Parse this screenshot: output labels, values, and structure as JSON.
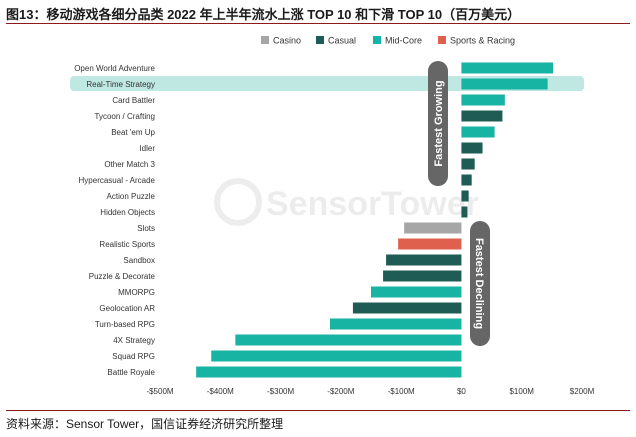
{
  "title": "图13：移动游戏各细分品类 2022 年上半年流水上涨 TOP 10 和下滑 TOP 10（百万美元）",
  "source": "资料来源：Sensor Tower，国信证券经济研究所整理",
  "watermark": "SensorTower",
  "annotations": {
    "growing": "Fastest Growing",
    "declining": "Fastest Declining"
  },
  "colors": {
    "Casino": "#a6a6a6",
    "Casual": "#1e5c55",
    "Mid-Core": "#17b3a3",
    "Sports & Racing": "#e0604e",
    "highlight": "#bfe8e2",
    "annotation": "#666666"
  },
  "chart_data": {
    "type": "bar",
    "orientation": "horizontal",
    "legend": [
      "Casino",
      "Casual",
      "Mid-Core",
      "Sports & Racing"
    ],
    "legend_position": "top",
    "categories": [
      "Open World Adventure",
      "Real-Time Strategy",
      "Card Battler",
      "Tycoon / Crafting",
      "Beat 'em Up",
      "Idler",
      "Other Match 3",
      "Hypercasual - Arcade",
      "Action Puzzle",
      "Hidden Objects",
      "Slots",
      "Realistic Sports",
      "Sandbox",
      "Puzzle & Decorate",
      "MMORPG",
      "Geolocation AR",
      "Turn-based RPG",
      "4X Strategy",
      "Squad RPG",
      "Battle Royale"
    ],
    "values": [
      152,
      143,
      72,
      68,
      55,
      35,
      22,
      17,
      12,
      10,
      -95,
      -105,
      -125,
      -130,
      -150,
      -180,
      -218,
      -375,
      -415,
      -440
    ],
    "groups": [
      "Mid-Core",
      "Mid-Core",
      "Mid-Core",
      "Casual",
      "Mid-Core",
      "Casual",
      "Casual",
      "Casual",
      "Casual",
      "Casual",
      "Casino",
      "Sports & Racing",
      "Casual",
      "Casual",
      "Mid-Core",
      "Casual",
      "Mid-Core",
      "Mid-Core",
      "Mid-Core",
      "Mid-Core"
    ],
    "highlighted_category": "Real-Time Strategy",
    "x_ticks": [
      "-$500M",
      "-$400M",
      "-$300M",
      "-$200M",
      "-$100M",
      "$0",
      "$100M",
      "$200M"
    ],
    "xlim": [
      -500,
      200
    ],
    "grid": false
  }
}
